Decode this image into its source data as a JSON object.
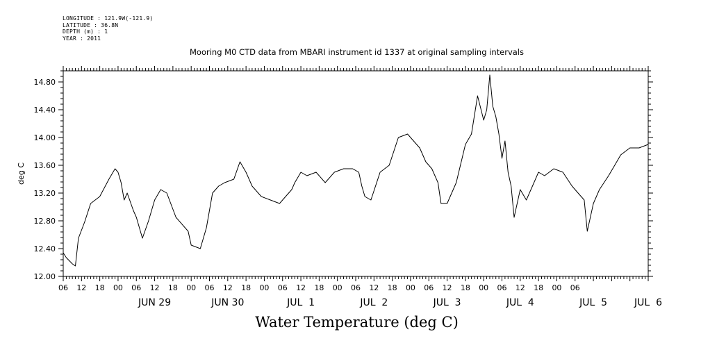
{
  "meta": {
    "longitude": "LONGITUDE : 121.9W(-121.9)",
    "latitude": "LATITUDE : 36.8N",
    "depth": "DEPTH (m) : 1",
    "year": "YEAR : 2011"
  },
  "chart_data": {
    "type": "line",
    "title": "Mooring M0 CTD data from MBARI instrument id 1337 at original sampling intervals",
    "xlabel": "Water Temperature (deg C)",
    "ylabel": "deg C",
    "ylim": [
      12.0,
      14.96
    ],
    "yticks": [
      "12.00",
      "12.40",
      "12.80",
      "13.20",
      "13.60",
      "14.00",
      "14.40",
      "14.80"
    ],
    "x_hour_labels": [
      "06",
      "12",
      "18",
      "00",
      "06",
      "12",
      "18",
      "00",
      "06",
      "12",
      "18",
      "00",
      "06",
      "12",
      "18",
      "00",
      "06",
      "12",
      "18",
      "00",
      "06",
      "12",
      "18",
      "00",
      "06",
      "12",
      "18",
      "00",
      "06"
    ],
    "x_day_labels": [
      "JUN 29",
      "JUN 30",
      "JUL  1",
      "JUL  2",
      "JUL  3",
      "JUL  4",
      "JUL  5",
      "JUL  6"
    ],
    "x_start": "2011-06-28 06:00",
    "x_end": "2011-07-06 06:00",
    "grid": false,
    "series": [
      {
        "x": [
          "2011-06-28 06:00",
          "2011-06-28 07:00",
          "2011-06-28 09:00",
          "2011-06-28 10:00",
          "2011-06-28 11:00",
          "2011-06-28 13:00",
          "2011-06-28 15:00",
          "2011-06-28 18:00",
          "2011-06-28 21:00",
          "2011-06-28 23:00",
          "2011-06-29 00:00",
          "2011-06-29 01:00",
          "2011-06-29 02:00",
          "2011-06-29 03:00",
          "2011-06-29 05:00",
          "2011-06-29 06:00",
          "2011-06-29 08:00",
          "2011-06-29 10:00",
          "2011-06-29 12:00",
          "2011-06-29 14:00",
          "2011-06-29 16:00",
          "2011-06-29 19:00",
          "2011-06-29 23:00",
          "2011-06-30 00:00",
          "2011-06-30 03:00",
          "2011-06-30 05:00",
          "2011-06-30 07:00",
          "2011-06-30 09:00",
          "2011-06-30 11:00",
          "2011-06-30 14:00",
          "2011-06-30 16:00",
          "2011-06-30 18:00",
          "2011-06-30 20:00",
          "2011-06-30 23:00",
          "2011-07-01 02:00",
          "2011-07-01 05:00",
          "2011-07-01 07:00",
          "2011-07-01 09:00",
          "2011-07-01 10:00",
          "2011-07-01 12:00",
          "2011-07-01 14:00",
          "2011-07-01 17:00",
          "2011-07-01 20:00",
          "2011-07-01 23:00",
          "2011-07-02 02:00",
          "2011-07-02 05:00",
          "2011-07-02 07:00",
          "2011-07-02 08:00",
          "2011-07-02 09:00",
          "2011-07-02 11:00",
          "2011-07-02 14:00",
          "2011-07-02 17:00",
          "2011-07-02 20:00",
          "2011-07-02 23:00",
          "2011-07-03 01:00",
          "2011-07-03 03:00",
          "2011-07-03 05:00",
          "2011-07-03 07:00",
          "2011-07-03 09:00",
          "2011-07-03 10:00",
          "2011-07-03 12:00",
          "2011-07-03 15:00",
          "2011-07-03 18:00",
          "2011-07-03 20:00",
          "2011-07-03 22:00",
          "2011-07-04 00:00",
          "2011-07-04 01:00",
          "2011-07-04 02:00",
          "2011-07-04 03:00",
          "2011-07-04 04:00",
          "2011-07-04 05:00",
          "2011-07-04 06:00",
          "2011-07-04 07:00",
          "2011-07-04 08:00",
          "2011-07-04 09:00",
          "2011-07-04 10:00",
          "2011-07-04 12:00",
          "2011-07-04 14:00",
          "2011-07-04 16:00",
          "2011-07-04 18:00",
          "2011-07-04 20:00",
          "2011-07-04 23:00",
          "2011-07-05 02:00",
          "2011-07-05 05:00",
          "2011-07-05 07:00",
          "2011-07-05 09:00",
          "2011-07-05 10:00",
          "2011-07-05 12:00",
          "2011-07-05 14:00",
          "2011-07-05 17:00",
          "2011-07-05 19:00",
          "2011-07-05 21:00",
          "2011-07-06 00:00",
          "2011-07-06 03:00",
          "2011-07-06 06:00"
        ],
        "values": [
          12.34,
          12.27,
          12.18,
          12.15,
          12.55,
          12.78,
          13.05,
          13.15,
          13.4,
          13.55,
          13.5,
          13.35,
          13.1,
          13.2,
          12.95,
          12.85,
          12.55,
          12.8,
          13.1,
          13.25,
          13.2,
          12.85,
          12.65,
          12.45,
          12.4,
          12.7,
          13.2,
          13.3,
          13.35,
          13.4,
          13.65,
          13.5,
          13.3,
          13.15,
          13.1,
          13.05,
          13.15,
          13.25,
          13.35,
          13.5,
          13.45,
          13.5,
          13.35,
          13.5,
          13.55,
          13.55,
          13.5,
          13.3,
          13.15,
          13.1,
          13.5,
          13.6,
          14.0,
          14.05,
          13.95,
          13.85,
          13.65,
          13.55,
          13.35,
          13.05,
          13.05,
          13.35,
          13.9,
          14.05,
          14.6,
          14.25,
          14.4,
          14.9,
          14.45,
          14.3,
          14.05,
          13.7,
          13.95,
          13.5,
          13.3,
          12.85,
          13.25,
          13.1,
          13.3,
          13.5,
          13.45,
          13.55,
          13.5,
          13.3,
          13.2,
          13.1,
          12.65,
          13.05,
          13.25,
          13.45,
          13.6,
          13.75,
          13.85,
          13.85,
          13.9
        ]
      }
    ]
  }
}
